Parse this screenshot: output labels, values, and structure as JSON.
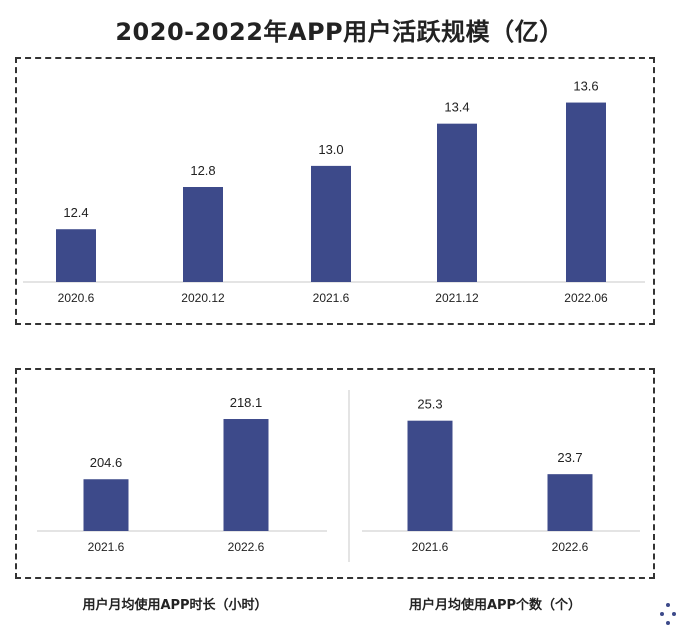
{
  "title": "2020-2022年APP用户活跃规模（亿）",
  "colors": {
    "bar": "#3d4a8a",
    "axis": "#c8c8c8"
  },
  "chart_data": [
    {
      "type": "bar",
      "title": "2020-2022年APP用户活跃规模（亿）",
      "categories": [
        "2020.6",
        "2020.12",
        "2021.6",
        "2021.12",
        "2022.06"
      ],
      "values": [
        12.4,
        12.8,
        13.0,
        13.4,
        13.6
      ],
      "value_labels": [
        "12.4",
        "12.8",
        "13.0",
        "13.4",
        "13.6"
      ],
      "ylim": [
        11.9,
        13.7
      ],
      "grid": false
    },
    {
      "type": "bar",
      "title": "用户月均使用APP时长（小时）",
      "categories": [
        "2021.6",
        "2022.6"
      ],
      "values": [
        204.6,
        218.1
      ],
      "value_labels": [
        "204.6",
        "218.1"
      ],
      "ylim": [
        193,
        219
      ],
      "grid": false
    },
    {
      "type": "bar",
      "title": "用户月均使用APP个数（个）",
      "categories": [
        "2021.6",
        "2022.6"
      ],
      "values": [
        25.3,
        23.7
      ],
      "value_labels": [
        "25.3",
        "23.7"
      ],
      "ylim": [
        22.0,
        25.5
      ],
      "grid": false
    }
  ],
  "decor": {
    "dots_icon": "dots-icon"
  }
}
